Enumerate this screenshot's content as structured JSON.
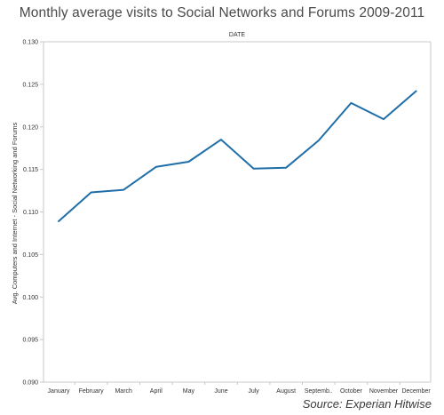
{
  "chart_data": {
    "type": "line",
    "title": "Monthly average visits to Social Networks and Forums 2009-2011",
    "header_label": "DATE",
    "ylabel": "Avg. Computers and Internet - Social Networking and Forums",
    "source": "Source: Experian Hitwise",
    "ylim": [
      0.09,
      0.13
    ],
    "yticks": [
      0.09,
      0.095,
      0.1,
      0.105,
      0.11,
      0.115,
      0.12,
      0.125,
      0.13
    ],
    "ytick_labels": [
      "0.090",
      "0.095",
      "0.100",
      "0.105",
      "0.110",
      "0.115",
      "0.120",
      "0.125",
      "0.130"
    ],
    "categories": [
      "January",
      "February",
      "March",
      "April",
      "May",
      "June",
      "July",
      "August",
      "Septemb..",
      "October",
      "November",
      "December"
    ],
    "series": [
      {
        "values": [
          0.1089,
          0.1123,
          0.1126,
          0.1153,
          0.1159,
          0.1185,
          0.1151,
          0.1152,
          0.1184,
          0.1228,
          0.1209,
          0.1242
        ],
        "color": "#1f6ea8"
      }
    ],
    "grid": false,
    "colors": {
      "line": "#1f6ea8",
      "axis": "#c8c8c8",
      "tick_text": "#333333",
      "title": "#4a4a4a"
    }
  }
}
